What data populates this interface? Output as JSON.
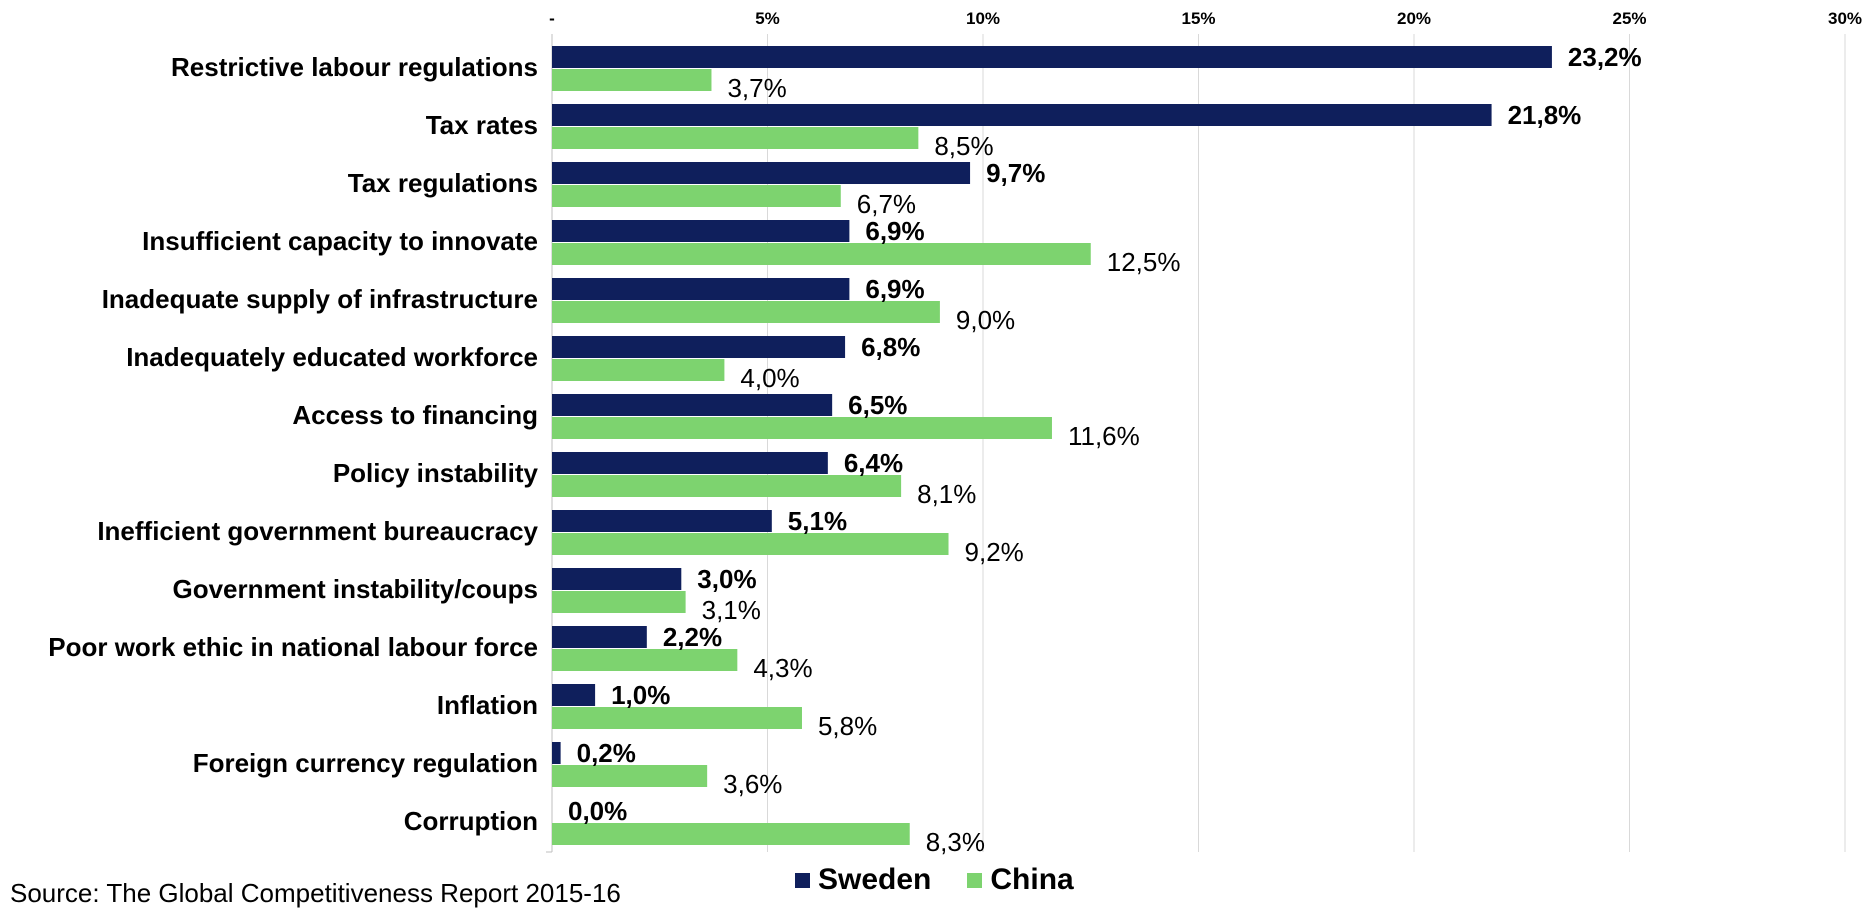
{
  "chart_data": {
    "type": "bar",
    "orientation": "horizontal",
    "categories": [
      "Restrictive labour regulations",
      "Tax rates",
      "Tax regulations",
      "Insufficient capacity to innovate",
      "Inadequate supply of infrastructure",
      "Inadequately educated workforce",
      "Access to financing",
      "Policy instability",
      "Inefficient government bureaucracy",
      "Government instability/coups",
      "Poor work ethic in national labour force",
      "Inflation",
      "Foreign currency regulation",
      "Corruption"
    ],
    "series": [
      {
        "name": "Sweden",
        "color": "#0f1f5c",
        "values": [
          23.2,
          21.8,
          9.7,
          6.9,
          6.9,
          6.8,
          6.5,
          6.4,
          5.1,
          3.0,
          2.2,
          1.0,
          0.2,
          0.0
        ],
        "labels": [
          "23,2%",
          "21,8%",
          "9,7%",
          "6,9%",
          "6,9%",
          "6,8%",
          "6,5%",
          "6,4%",
          "5,1%",
          "3,0%",
          "2,2%",
          "1,0%",
          "0,2%",
          "0,0%"
        ]
      },
      {
        "name": "China",
        "color": "#7dd36f",
        "values": [
          3.7,
          8.5,
          6.7,
          12.5,
          9.0,
          4.0,
          11.6,
          8.1,
          9.2,
          3.1,
          4.3,
          5.8,
          3.6,
          8.3
        ],
        "labels": [
          "3,7%",
          "8,5%",
          "6,7%",
          "12,5%",
          "9,0%",
          "4,0%",
          "11,6%",
          "8,1%",
          "9,2%",
          "3,1%",
          "4,3%",
          "5,8%",
          "3,6%",
          "8,3%"
        ]
      }
    ],
    "x_ticks": [
      "-",
      "5%",
      "10%",
      "15%",
      "20%",
      "25%",
      "30%"
    ],
    "xlim": [
      0,
      30
    ],
    "xaxis_position": "top",
    "grid": true,
    "legend_position": "bottom"
  },
  "legend": {
    "sweden_label": "Sweden",
    "china_label": "China"
  },
  "source_note": "Source: The Global Competitiveness Report 2015-16"
}
